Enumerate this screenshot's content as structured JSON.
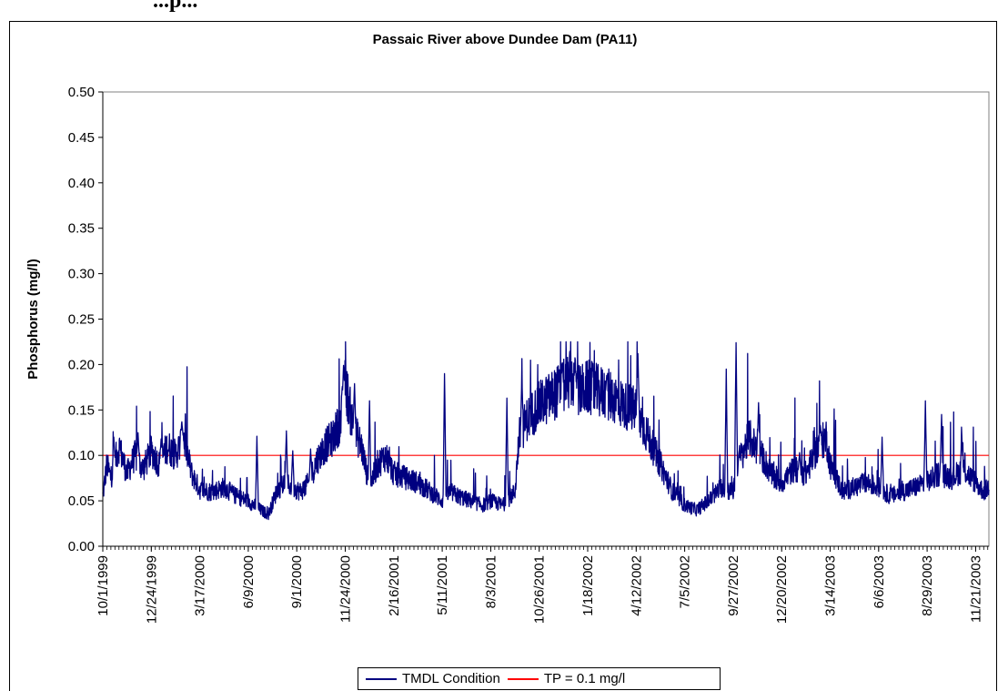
{
  "chart_data": {
    "type": "line",
    "title": "Passaic River above Dundee Dam (PA11)",
    "ylabel": "Phosphorus (mg/l)",
    "xlabel": "",
    "ylim": [
      0,
      0.5
    ],
    "yticks": [
      "0.00",
      "0.05",
      "0.10",
      "0.15",
      "0.20",
      "0.25",
      "0.30",
      "0.35",
      "0.40",
      "0.45",
      "0.50"
    ],
    "xlim": [
      "1999-10-01",
      "2003-12-14"
    ],
    "xticks": [
      {
        "label": "10/1/1999",
        "date": "1999-10-01"
      },
      {
        "label": "12/24/1999",
        "date": "1999-12-24"
      },
      {
        "label": "3/17/2000",
        "date": "2000-03-17"
      },
      {
        "label": "6/9/2000",
        "date": "2000-06-09"
      },
      {
        "label": "9/1/2000",
        "date": "2000-09-01"
      },
      {
        "label": "11/24/2000",
        "date": "2000-11-24"
      },
      {
        "label": "2/16/2001",
        "date": "2001-02-16"
      },
      {
        "label": "5/11/2001",
        "date": "2001-05-11"
      },
      {
        "label": "8/3/2001",
        "date": "2001-08-03"
      },
      {
        "label": "10/26/2001",
        "date": "2001-10-26"
      },
      {
        "label": "1/18/2002",
        "date": "2002-01-18"
      },
      {
        "label": "4/12/2002",
        "date": "2002-04-12"
      },
      {
        "label": "7/5/2002",
        "date": "2002-07-05"
      },
      {
        "label": "9/27/2002",
        "date": "2002-09-27"
      },
      {
        "label": "12/20/2002",
        "date": "2002-12-20"
      },
      {
        "label": "3/14/2003",
        "date": "2003-03-14"
      },
      {
        "label": "6/6/2003",
        "date": "2003-06-06"
      },
      {
        "label": "8/29/2003",
        "date": "2003-08-29"
      },
      {
        "label": "11/21/2003",
        "date": "2003-11-21"
      }
    ],
    "series": [
      {
        "name": "TMDL Condition",
        "color": "#000080",
        "points": [
          [
            "1999-10-01",
            0.055
          ],
          [
            "1999-10-08",
            0.09
          ],
          [
            "1999-10-15",
            0.075
          ],
          [
            "1999-10-29",
            0.11
          ],
          [
            "1999-11-12",
            0.08
          ],
          [
            "1999-11-26",
            0.1
          ],
          [
            "1999-12-10",
            0.085
          ],
          [
            "1999-12-24",
            0.105
          ],
          [
            "2000-01-07",
            0.09
          ],
          [
            "2000-01-21",
            0.11
          ],
          [
            "2000-02-04",
            0.1
          ],
          [
            "2000-02-18",
            0.12
          ],
          [
            "2000-03-03",
            0.08
          ],
          [
            "2000-03-17",
            0.062
          ],
          [
            "2000-04-07",
            0.06
          ],
          [
            "2000-04-28",
            0.065
          ],
          [
            "2000-05-19",
            0.055
          ],
          [
            "2000-06-09",
            0.05
          ],
          [
            "2000-06-30",
            0.04
          ],
          [
            "2000-07-14",
            0.035
          ],
          [
            "2000-07-28",
            0.06
          ],
          [
            "2000-08-11",
            0.07
          ],
          [
            "2000-08-25",
            0.065
          ],
          [
            "2000-09-08",
            0.06
          ],
          [
            "2000-09-22",
            0.07
          ],
          [
            "2000-10-06",
            0.095
          ],
          [
            "2000-10-20",
            0.11
          ],
          [
            "2000-11-03",
            0.12
          ],
          [
            "2000-11-17",
            0.14
          ],
          [
            "2000-11-24",
            0.18
          ],
          [
            "2000-12-08",
            0.13
          ],
          [
            "2000-12-22",
            0.11
          ],
          [
            "2001-01-05",
            0.065
          ],
          [
            "2001-01-19",
            0.09
          ],
          [
            "2001-02-02",
            0.1
          ],
          [
            "2001-02-16",
            0.08
          ],
          [
            "2001-03-09",
            0.075
          ],
          [
            "2001-03-30",
            0.07
          ],
          [
            "2001-04-20",
            0.06
          ],
          [
            "2001-05-11",
            0.05
          ],
          [
            "2001-05-25",
            0.06
          ],
          [
            "2001-06-08",
            0.055
          ],
          [
            "2001-06-29",
            0.05
          ],
          [
            "2001-07-20",
            0.045
          ],
          [
            "2001-08-03",
            0.05
          ],
          [
            "2001-08-24",
            0.045
          ],
          [
            "2001-09-14",
            0.06
          ],
          [
            "2001-09-21",
            0.12
          ],
          [
            "2001-10-05",
            0.14
          ],
          [
            "2001-10-26",
            0.155
          ],
          [
            "2001-11-16",
            0.165
          ],
          [
            "2001-12-07",
            0.175
          ],
          [
            "2001-12-21",
            0.185
          ],
          [
            "2002-01-04",
            0.17
          ],
          [
            "2002-01-18",
            0.175
          ],
          [
            "2002-02-08",
            0.17
          ],
          [
            "2002-03-01",
            0.165
          ],
          [
            "2002-03-22",
            0.155
          ],
          [
            "2002-04-12",
            0.15
          ],
          [
            "2002-05-03",
            0.12
          ],
          [
            "2002-05-24",
            0.09
          ],
          [
            "2002-06-14",
            0.06
          ],
          [
            "2002-07-05",
            0.045
          ],
          [
            "2002-07-26",
            0.04
          ],
          [
            "2002-08-16",
            0.05
          ],
          [
            "2002-09-06",
            0.065
          ],
          [
            "2002-09-27",
            0.06
          ],
          [
            "2002-10-04",
            0.09
          ],
          [
            "2002-10-25",
            0.12
          ],
          [
            "2002-11-15",
            0.1
          ],
          [
            "2002-12-06",
            0.075
          ],
          [
            "2002-12-20",
            0.07
          ],
          [
            "2003-01-10",
            0.085
          ],
          [
            "2003-01-31",
            0.08
          ],
          [
            "2003-02-21",
            0.11
          ],
          [
            "2003-03-07",
            0.12
          ],
          [
            "2003-03-14",
            0.09
          ],
          [
            "2003-04-04",
            0.06
          ],
          [
            "2003-04-25",
            0.065
          ],
          [
            "2003-05-16",
            0.07
          ],
          [
            "2003-06-06",
            0.065
          ],
          [
            "2003-06-27",
            0.055
          ],
          [
            "2003-07-18",
            0.06
          ],
          [
            "2003-08-08",
            0.065
          ],
          [
            "2003-08-29",
            0.07
          ],
          [
            "2003-09-19",
            0.08
          ],
          [
            "2003-10-10",
            0.075
          ],
          [
            "2003-10-31",
            0.085
          ],
          [
            "2003-11-21",
            0.07
          ],
          [
            "2003-12-05",
            0.06
          ],
          [
            "2003-12-14",
            0.065
          ]
        ],
        "spikes": [
          [
            "1999-10-20",
            0.12
          ],
          [
            "1999-12-01",
            0.125
          ],
          [
            "2000-01-10",
            0.118
          ],
          [
            "2000-02-15",
            0.137
          ],
          [
            "2000-06-24",
            0.121
          ],
          [
            "2000-08-14",
            0.127
          ],
          [
            "2000-08-25",
            0.105
          ],
          [
            "2000-09-25",
            0.107
          ],
          [
            "2000-11-21",
            0.199
          ],
          [
            "2000-12-10",
            0.178
          ],
          [
            "2001-01-05",
            0.16
          ],
          [
            "2001-05-15",
            0.19
          ],
          [
            "2001-08-31",
            0.163
          ],
          [
            "2001-09-26",
            0.186
          ],
          [
            "2001-12-05",
            0.202
          ],
          [
            "2001-12-27",
            0.2
          ],
          [
            "2002-02-20",
            0.188
          ],
          [
            "2002-04-15",
            0.212
          ],
          [
            "2002-09-15",
            0.195
          ],
          [
            "2002-10-02",
            0.224
          ],
          [
            "2002-11-10",
            0.158
          ],
          [
            "2003-01-20",
            0.103
          ],
          [
            "2003-02-25",
            0.133
          ],
          [
            "2003-06-12",
            0.12
          ],
          [
            "2003-08-26",
            0.16
          ],
          [
            "2003-09-23",
            0.145
          ],
          [
            "2003-10-28",
            0.123
          ]
        ]
      },
      {
        "name": "TP = 0.1 mg/l",
        "color": "#ff0000",
        "constant": 0.1
      }
    ],
    "legend_position": "bottom-center"
  },
  "header_fragment": "...p..."
}
